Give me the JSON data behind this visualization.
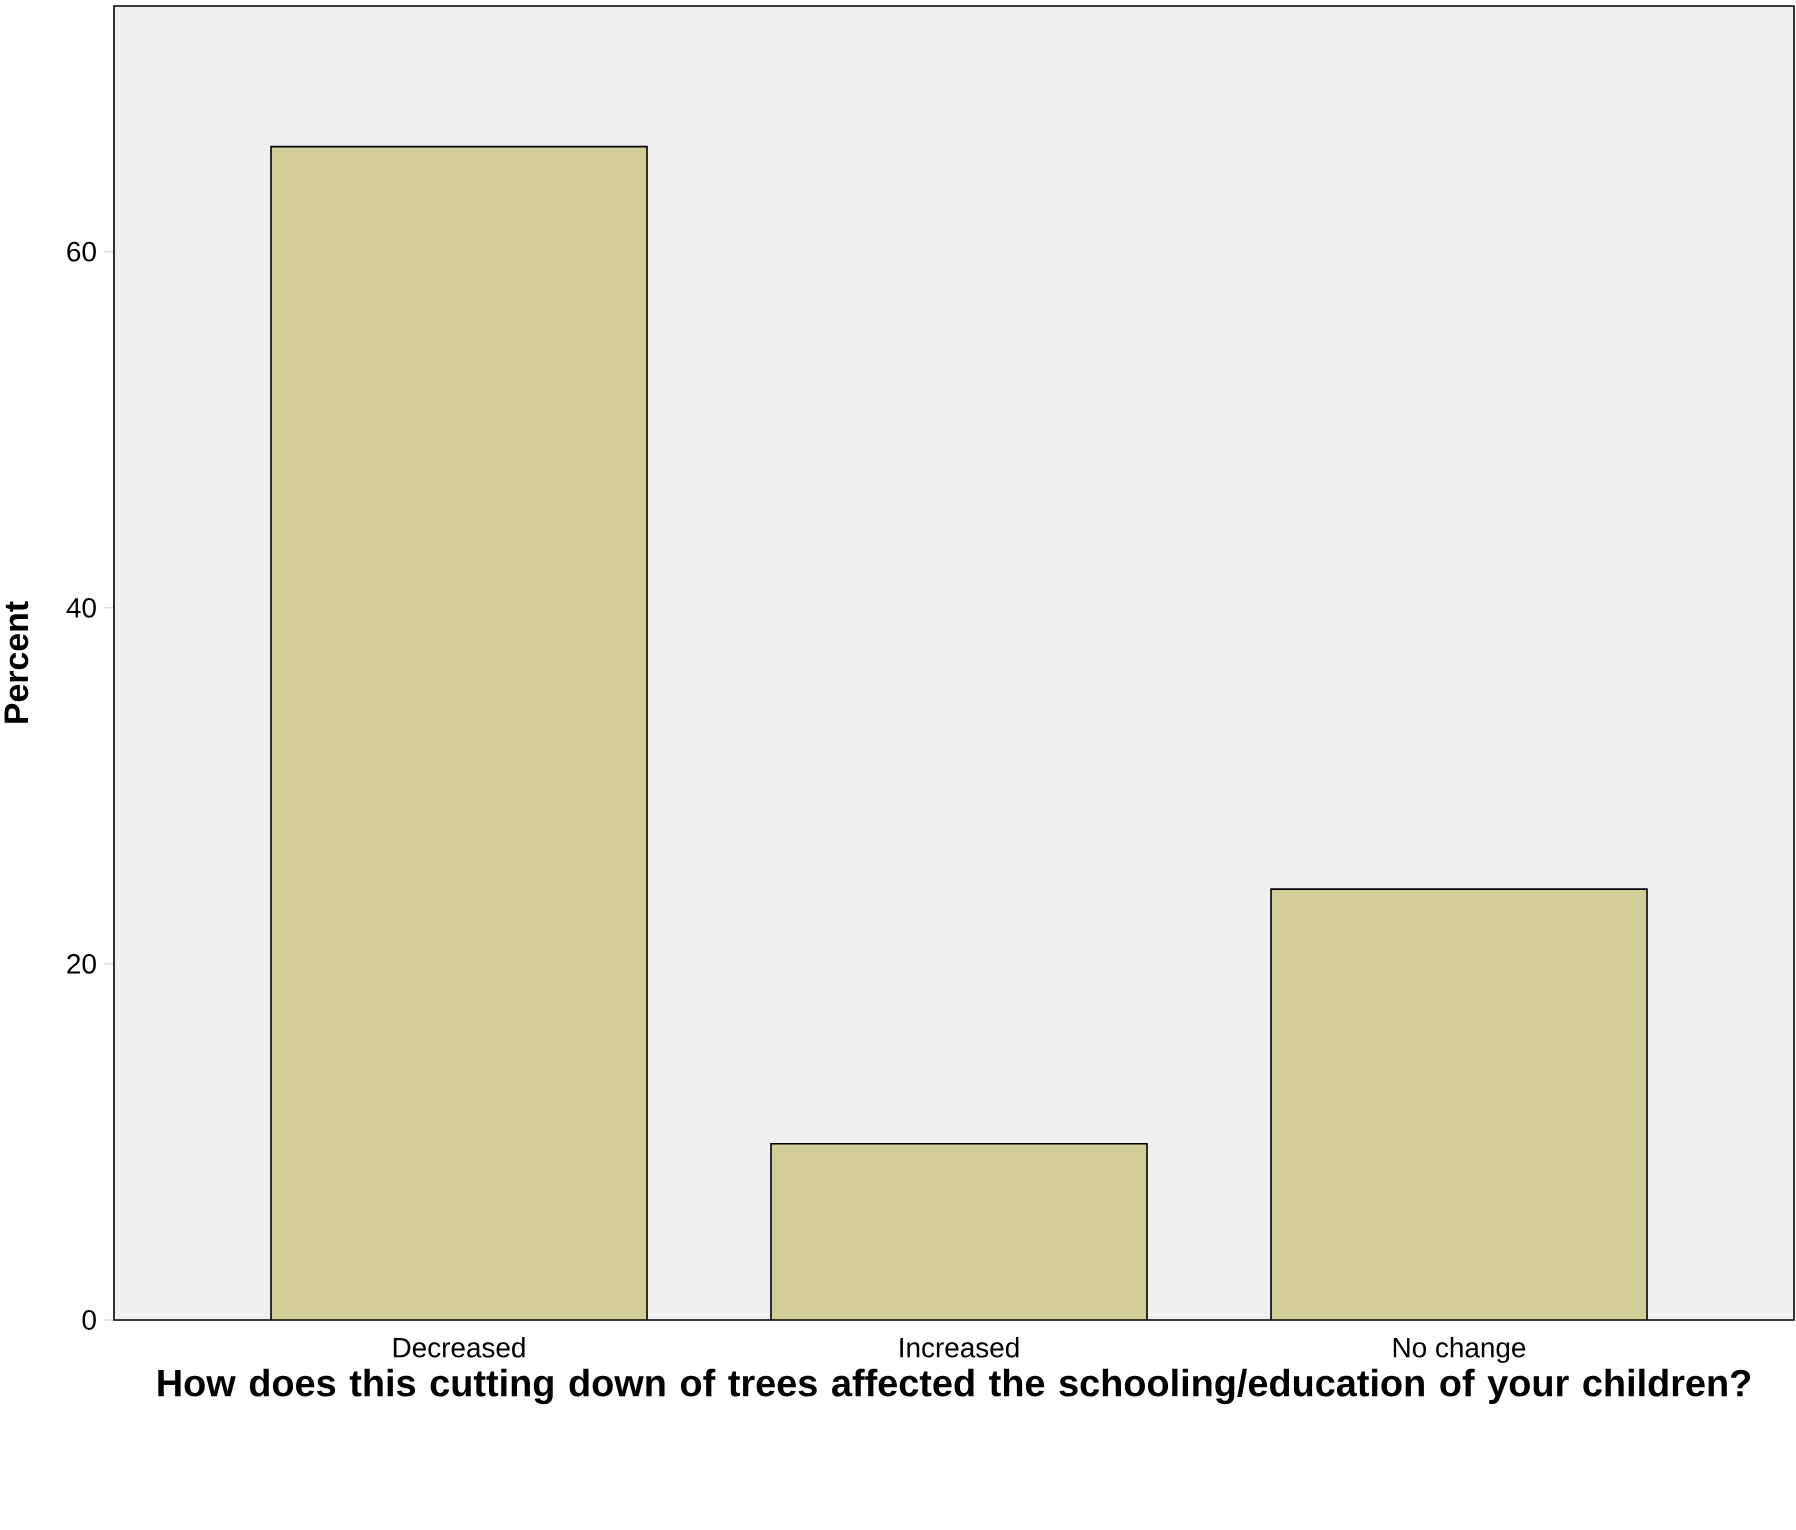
{
  "chart_data": {
    "type": "bar",
    "xlabel": "How does this cutting down of trees affected the schooling/education of your children?",
    "ylabel": "Percent",
    "categories": [
      "Decreased",
      "Increased",
      "No change"
    ],
    "values": [
      65.9,
      9.9,
      24.2
    ],
    "color": "#d3ce97",
    "ylim": [
      0,
      73.8
    ],
    "yticks": [
      0,
      20,
      40,
      60
    ]
  }
}
